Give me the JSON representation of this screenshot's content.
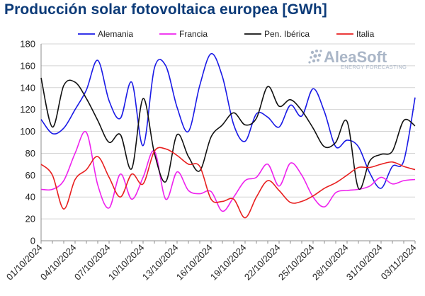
{
  "chart_data": {
    "type": "line",
    "title": "Producción solar fotovoltaica europea [GWh]",
    "xlabel": "",
    "ylabel": "",
    "ylim": [
      0,
      180
    ],
    "yticks": [
      0,
      20,
      40,
      60,
      80,
      100,
      120,
      140,
      160,
      180
    ],
    "grid": true,
    "legend_position": "top",
    "x": [
      "01/10/2024",
      "02/10/2024",
      "03/10/2024",
      "04/10/2024",
      "05/10/2024",
      "06/10/2024",
      "07/10/2024",
      "08/10/2024",
      "09/10/2024",
      "10/10/2024",
      "11/10/2024",
      "12/10/2024",
      "13/10/2024",
      "14/10/2024",
      "15/10/2024",
      "16/10/2024",
      "17/10/2024",
      "18/10/2024",
      "19/10/2024",
      "20/10/2024",
      "21/10/2024",
      "22/10/2024",
      "23/10/2024",
      "24/10/2024",
      "25/10/2024",
      "26/10/2024",
      "27/10/2024",
      "28/10/2024",
      "29/10/2024",
      "30/10/2024",
      "31/10/2024",
      "01/11/2024",
      "02/11/2024",
      "03/11/2024"
    ],
    "xtick_labels": [
      "01/10/2024",
      "04/10/2024",
      "07/10/2024",
      "10/10/2024",
      "13/10/2024",
      "16/10/2024",
      "19/10/2024",
      "22/10/2024",
      "25/10/2024",
      "28/10/2024",
      "31/10/2024",
      "03/11/2024"
    ],
    "series": [
      {
        "name": "Alemania",
        "color": "#1a1ae6",
        "values": [
          111,
          98,
          103,
          120,
          138,
          165,
          128,
          112,
          145,
          87,
          158,
          160,
          122,
          100,
          142,
          171,
          150,
          106,
          91,
          116,
          113,
          104,
          124,
          114,
          139,
          118,
          86,
          92,
          86,
          62,
          48,
          68,
          73,
          131
        ]
      },
      {
        "name": "Francia",
        "color": "#ee22ee",
        "values": [
          47,
          47,
          55,
          80,
          99,
          51,
          30,
          61,
          38,
          58,
          82,
          38,
          63,
          46,
          43,
          45,
          27,
          40,
          55,
          58,
          70,
          50,
          71,
          60,
          40,
          31,
          44,
          46,
          47,
          50,
          58,
          52,
          55,
          56
        ]
      },
      {
        "name": "Pen. Ibérica",
        "color": "#111111",
        "values": [
          149,
          104,
          142,
          145,
          130,
          110,
          90,
          97,
          66,
          130,
          80,
          54,
          97,
          77,
          64,
          95,
          106,
          117,
          106,
          112,
          141,
          123,
          129,
          119,
          103,
          86,
          90,
          109,
          48,
          73,
          79,
          82,
          110,
          105
        ]
      },
      {
        "name": "Italia",
        "color": "#e82020",
        "values": [
          70,
          60,
          29,
          56,
          65,
          77,
          58,
          40,
          61,
          52,
          82,
          84,
          78,
          70,
          68,
          38,
          36,
          38,
          21,
          40,
          55,
          46,
          35,
          36,
          41,
          48,
          53,
          60,
          67,
          67,
          70,
          72,
          68,
          65
        ]
      }
    ]
  },
  "logo": {
    "name": "AleaSoft",
    "tagline": "ENERGY FORECASTING",
    "icon": "aleasoft-dots-icon",
    "color": "#aab6c7"
  }
}
